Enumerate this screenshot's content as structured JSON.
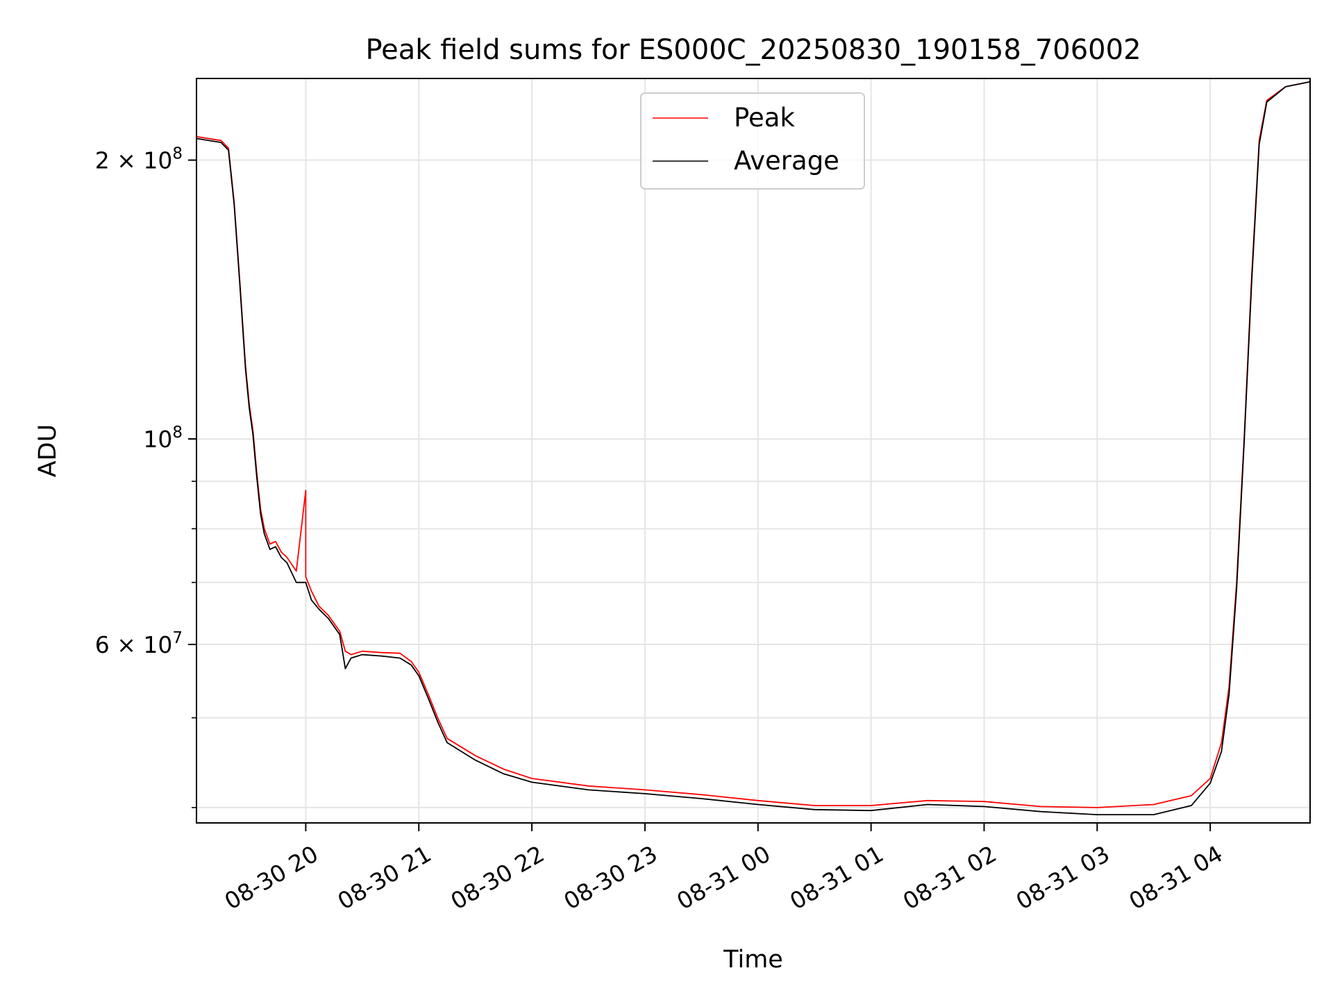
{
  "chart_data": {
    "type": "line",
    "title": "Peak field sums for ES000C_20250830_190158_706002",
    "xlabel": "Time",
    "ylabel": "ADU",
    "y_scale": "log",
    "ylim": [
      38500000,
      245000000
    ],
    "xlim": [
      "2025-08-30 19:02",
      "2025-08-31 04:53"
    ],
    "x_ticks": [
      {
        "t": "2025-08-30 20:00",
        "label": "08-30 20"
      },
      {
        "t": "2025-08-30 21:00",
        "label": "08-30 21"
      },
      {
        "t": "2025-08-30 22:00",
        "label": "08-30 22"
      },
      {
        "t": "2025-08-30 23:00",
        "label": "08-30 23"
      },
      {
        "t": "2025-08-31 00:00",
        "label": "08-31 00"
      },
      {
        "t": "2025-08-31 01:00",
        "label": "08-31 01"
      },
      {
        "t": "2025-08-31 02:00",
        "label": "08-31 02"
      },
      {
        "t": "2025-08-31 03:00",
        "label": "08-31 03"
      },
      {
        "t": "2025-08-31 04:00",
        "label": "08-31 04"
      }
    ],
    "y_ticks_major": [
      {
        "v": 60000000,
        "base": "6 × 10",
        "exp": "7"
      },
      {
        "v": 100000000,
        "base": "10",
        "exp": "8"
      },
      {
        "v": 200000000,
        "base": "2 × 10",
        "exp": "8"
      }
    ],
    "y_ticks_minor": [
      40000000,
      50000000,
      70000000,
      80000000,
      90000000
    ],
    "grid": true,
    "legend_position": "top-center",
    "series": [
      {
        "name": "Peak",
        "color": "#ff0000",
        "points": [
          [
            "2025-08-30 19:02",
            212000000
          ],
          [
            "2025-08-30 19:15",
            210000000
          ],
          [
            "2025-08-30 19:19",
            206000000
          ],
          [
            "2025-08-30 19:22",
            180000000
          ],
          [
            "2025-08-30 19:25",
            148000000
          ],
          [
            "2025-08-30 19:28",
            120000000
          ],
          [
            "2025-08-30 19:30",
            109000000
          ],
          [
            "2025-08-30 19:32",
            102000000
          ],
          [
            "2025-08-30 19:34",
            92000000
          ],
          [
            "2025-08-30 19:36",
            84000000
          ],
          [
            "2025-08-30 19:38",
            80000000
          ],
          [
            "2025-08-30 19:41",
            77000000
          ],
          [
            "2025-08-30 19:44",
            77500000
          ],
          [
            "2025-08-30 19:47",
            75500000
          ],
          [
            "2025-08-30 19:50",
            74500000
          ],
          [
            "2025-08-30 19:55",
            72000000
          ],
          [
            "2025-08-30 20:00",
            88000000
          ],
          [
            "2025-08-30 20:00",
            71000000
          ],
          [
            "2025-08-30 20:03",
            68500000
          ],
          [
            "2025-08-30 20:07",
            66000000
          ],
          [
            "2025-08-30 20:12",
            64500000
          ],
          [
            "2025-08-30 20:18",
            62000000
          ],
          [
            "2025-08-30 20:21",
            59000000
          ],
          [
            "2025-08-30 20:24",
            58500000
          ],
          [
            "2025-08-30 20:30",
            59000000
          ],
          [
            "2025-08-30 20:40",
            58800000
          ],
          [
            "2025-08-30 20:50",
            58700000
          ],
          [
            "2025-08-30 20:56",
            57500000
          ],
          [
            "2025-08-30 21:00",
            56000000
          ],
          [
            "2025-08-30 21:05",
            53000000
          ],
          [
            "2025-08-30 21:10",
            50000000
          ],
          [
            "2025-08-30 21:15",
            47500000
          ],
          [
            "2025-08-30 21:30",
            45500000
          ],
          [
            "2025-08-30 21:45",
            44000000
          ],
          [
            "2025-08-30 22:00",
            43000000
          ],
          [
            "2025-08-30 22:30",
            42200000
          ],
          [
            "2025-08-30 23:00",
            41800000
          ],
          [
            "2025-08-30 23:30",
            41300000
          ],
          [
            "2025-08-31 00:00",
            40700000
          ],
          [
            "2025-08-31 00:30",
            40200000
          ],
          [
            "2025-08-31 01:00",
            40200000
          ],
          [
            "2025-08-31 01:30",
            40700000
          ],
          [
            "2025-08-31 02:00",
            40600000
          ],
          [
            "2025-08-31 02:30",
            40100000
          ],
          [
            "2025-08-31 03:00",
            40000000
          ],
          [
            "2025-08-31 03:30",
            40300000
          ],
          [
            "2025-08-31 03:50",
            41200000
          ],
          [
            "2025-08-31 04:00",
            43000000
          ],
          [
            "2025-08-31 04:06",
            47000000
          ],
          [
            "2025-08-31 04:10",
            54000000
          ],
          [
            "2025-08-31 04:14",
            70000000
          ],
          [
            "2025-08-31 04:18",
            100000000
          ],
          [
            "2025-08-31 04:22",
            150000000
          ],
          [
            "2025-08-31 04:26",
            210000000
          ],
          [
            "2025-08-31 04:30",
            232000000
          ],
          [
            "2025-08-31 04:40",
            240000000
          ],
          [
            "2025-08-31 04:53",
            243000000
          ]
        ]
      },
      {
        "name": "Average",
        "color": "#000000",
        "points": [
          [
            "2025-08-30 19:02",
            211000000
          ],
          [
            "2025-08-30 19:15",
            209000000
          ],
          [
            "2025-08-30 19:19",
            205000000
          ],
          [
            "2025-08-30 19:22",
            179000000
          ],
          [
            "2025-08-30 19:25",
            147000000
          ],
          [
            "2025-08-30 19:28",
            119000000
          ],
          [
            "2025-08-30 19:30",
            108000000
          ],
          [
            "2025-08-30 19:32",
            101000000
          ],
          [
            "2025-08-30 19:34",
            91000000
          ],
          [
            "2025-08-30 19:36",
            83000000
          ],
          [
            "2025-08-30 19:38",
            79000000
          ],
          [
            "2025-08-30 19:41",
            76000000
          ],
          [
            "2025-08-30 19:44",
            76500000
          ],
          [
            "2025-08-30 19:47",
            74500000
          ],
          [
            "2025-08-30 19:50",
            73500000
          ],
          [
            "2025-08-30 19:55",
            70000000
          ],
          [
            "2025-08-30 20:00",
            70000000
          ],
          [
            "2025-08-30 20:03",
            67000000
          ],
          [
            "2025-08-30 20:07",
            65500000
          ],
          [
            "2025-08-30 20:12",
            64000000
          ],
          [
            "2025-08-30 20:18",
            61500000
          ],
          [
            "2025-08-30 20:21",
            56500000
          ],
          [
            "2025-08-30 20:24",
            58000000
          ],
          [
            "2025-08-30 20:30",
            58500000
          ],
          [
            "2025-08-30 20:40",
            58300000
          ],
          [
            "2025-08-30 20:50",
            58000000
          ],
          [
            "2025-08-30 20:56",
            57000000
          ],
          [
            "2025-08-30 21:00",
            55500000
          ],
          [
            "2025-08-30 21:05",
            52500000
          ],
          [
            "2025-08-30 21:10",
            49500000
          ],
          [
            "2025-08-30 21:15",
            47000000
          ],
          [
            "2025-08-30 21:30",
            45000000
          ],
          [
            "2025-08-30 21:45",
            43500000
          ],
          [
            "2025-08-30 22:00",
            42600000
          ],
          [
            "2025-08-30 22:30",
            41800000
          ],
          [
            "2025-08-30 23:00",
            41400000
          ],
          [
            "2025-08-30 23:30",
            40900000
          ],
          [
            "2025-08-31 00:00",
            40300000
          ],
          [
            "2025-08-31 00:30",
            39800000
          ],
          [
            "2025-08-31 01:00",
            39700000
          ],
          [
            "2025-08-31 01:30",
            40300000
          ],
          [
            "2025-08-31 02:00",
            40100000
          ],
          [
            "2025-08-31 02:30",
            39600000
          ],
          [
            "2025-08-31 03:00",
            39300000
          ],
          [
            "2025-08-31 03:30",
            39300000
          ],
          [
            "2025-08-31 03:50",
            40200000
          ],
          [
            "2025-08-31 04:00",
            42500000
          ],
          [
            "2025-08-31 04:06",
            46000000
          ],
          [
            "2025-08-31 04:10",
            53000000
          ],
          [
            "2025-08-31 04:14",
            69000000
          ],
          [
            "2025-08-31 04:18",
            99000000
          ],
          [
            "2025-08-31 04:22",
            148000000
          ],
          [
            "2025-08-31 04:26",
            208000000
          ],
          [
            "2025-08-31 04:30",
            231000000
          ],
          [
            "2025-08-31 04:40",
            240000000
          ],
          [
            "2025-08-31 04:53",
            243000000
          ]
        ]
      }
    ]
  }
}
